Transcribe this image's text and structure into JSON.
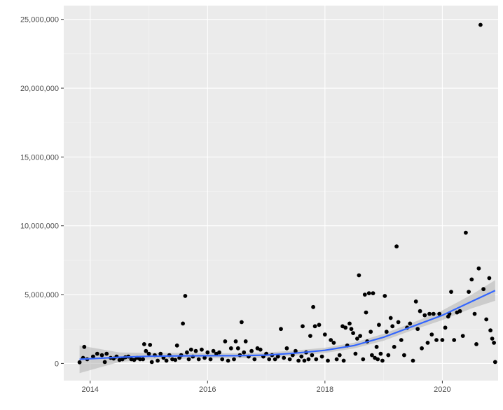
{
  "chart_data": {
    "type": "scatter",
    "xlim": [
      2013.55,
      2020.95
    ],
    "ylim": [
      -1250000,
      26000000
    ],
    "grid": true,
    "x_ticks": [
      2014,
      2016,
      2018,
      2020
    ],
    "x_tick_labels": [
      "2014",
      "2016",
      "2018",
      "2020"
    ],
    "y_ticks": [
      0,
      5000000,
      10000000,
      15000000,
      20000000,
      25000000
    ],
    "y_tick_labels": [
      "0",
      "5,000,000",
      "10,000,000",
      "15,000,000",
      "20,000,000",
      "25,000,000"
    ],
    "points": [
      [
        2013.82,
        80000
      ],
      [
        2013.88,
        400000
      ],
      [
        2013.9,
        1200000
      ],
      [
        2013.95,
        300000
      ],
      [
        2014.05,
        500000
      ],
      [
        2014.12,
        700000
      ],
      [
        2014.2,
        600000
      ],
      [
        2014.25,
        100000
      ],
      [
        2014.28,
        700000
      ],
      [
        2014.35,
        400000
      ],
      [
        2014.4,
        350000
      ],
      [
        2014.45,
        500000
      ],
      [
        2014.5,
        250000
      ],
      [
        2014.55,
        300000
      ],
      [
        2014.6,
        450000
      ],
      [
        2014.65,
        500000
      ],
      [
        2014.7,
        300000
      ],
      [
        2014.75,
        250000
      ],
      [
        2014.8,
        400000
      ],
      [
        2014.85,
        300000
      ],
      [
        2014.9,
        300000
      ],
      [
        2014.92,
        1400000
      ],
      [
        2014.95,
        900000
      ],
      [
        2015.0,
        700000
      ],
      [
        2015.02,
        1350000
      ],
      [
        2015.05,
        100000
      ],
      [
        2015.1,
        600000
      ],
      [
        2015.15,
        200000
      ],
      [
        2015.2,
        700000
      ],
      [
        2015.25,
        400000
      ],
      [
        2015.3,
        200000
      ],
      [
        2015.35,
        600000
      ],
      [
        2015.4,
        300000
      ],
      [
        2015.45,
        250000
      ],
      [
        2015.48,
        1300000
      ],
      [
        2015.52,
        400000
      ],
      [
        2015.55,
        600000
      ],
      [
        2015.58,
        2900000
      ],
      [
        2015.62,
        4900000
      ],
      [
        2015.65,
        800000
      ],
      [
        2015.68,
        300000
      ],
      [
        2015.72,
        1000000
      ],
      [
        2015.75,
        500000
      ],
      [
        2015.8,
        900000
      ],
      [
        2015.85,
        300000
      ],
      [
        2015.9,
        1000000
      ],
      [
        2015.95,
        400000
      ],
      [
        2016.0,
        800000
      ],
      [
        2016.05,
        300000
      ],
      [
        2016.1,
        900000
      ],
      [
        2016.15,
        700000
      ],
      [
        2016.2,
        800000
      ],
      [
        2016.25,
        300000
      ],
      [
        2016.3,
        1600000
      ],
      [
        2016.35,
        200000
      ],
      [
        2016.4,
        1100000
      ],
      [
        2016.45,
        300000
      ],
      [
        2016.48,
        1600000
      ],
      [
        2016.52,
        1100000
      ],
      [
        2016.55,
        600000
      ],
      [
        2016.58,
        3000000
      ],
      [
        2016.62,
        800000
      ],
      [
        2016.65,
        1600000
      ],
      [
        2016.7,
        500000
      ],
      [
        2016.75,
        900000
      ],
      [
        2016.8,
        300000
      ],
      [
        2016.85,
        1100000
      ],
      [
        2016.9,
        1000000
      ],
      [
        2016.95,
        500000
      ],
      [
        2017.0,
        700000
      ],
      [
        2017.05,
        300000
      ],
      [
        2017.1,
        600000
      ],
      [
        2017.15,
        300000
      ],
      [
        2017.2,
        500000
      ],
      [
        2017.25,
        2500000
      ],
      [
        2017.3,
        400000
      ],
      [
        2017.35,
        1100000
      ],
      [
        2017.4,
        300000
      ],
      [
        2017.45,
        600000
      ],
      [
        2017.5,
        900000
      ],
      [
        2017.55,
        200000
      ],
      [
        2017.6,
        500000
      ],
      [
        2017.62,
        2700000
      ],
      [
        2017.65,
        200000
      ],
      [
        2017.68,
        800000
      ],
      [
        2017.72,
        300000
      ],
      [
        2017.75,
        2000000
      ],
      [
        2017.78,
        600000
      ],
      [
        2017.8,
        4100000
      ],
      [
        2017.83,
        2700000
      ],
      [
        2017.85,
        300000
      ],
      [
        2017.9,
        2800000
      ],
      [
        2017.95,
        500000
      ],
      [
        2018.0,
        2100000
      ],
      [
        2018.05,
        200000
      ],
      [
        2018.1,
        1700000
      ],
      [
        2018.15,
        1500000
      ],
      [
        2018.2,
        300000
      ],
      [
        2018.25,
        600000
      ],
      [
        2018.3,
        2700000
      ],
      [
        2018.32,
        200000
      ],
      [
        2018.35,
        2600000
      ],
      [
        2018.38,
        1300000
      ],
      [
        2018.42,
        2900000
      ],
      [
        2018.45,
        2500000
      ],
      [
        2018.48,
        2200000
      ],
      [
        2018.52,
        700000
      ],
      [
        2018.55,
        1800000
      ],
      [
        2018.58,
        6400000
      ],
      [
        2018.6,
        2000000
      ],
      [
        2018.65,
        300000
      ],
      [
        2018.68,
        5000000
      ],
      [
        2018.7,
        3700000
      ],
      [
        2018.72,
        1600000
      ],
      [
        2018.75,
        5100000
      ],
      [
        2018.78,
        2300000
      ],
      [
        2018.8,
        600000
      ],
      [
        2018.82,
        5100000
      ],
      [
        2018.85,
        400000
      ],
      [
        2018.88,
        1200000
      ],
      [
        2018.9,
        300000
      ],
      [
        2018.92,
        2800000
      ],
      [
        2018.95,
        700000
      ],
      [
        2018.98,
        200000
      ],
      [
        2019.02,
        4900000
      ],
      [
        2019.05,
        2300000
      ],
      [
        2019.08,
        600000
      ],
      [
        2019.12,
        3300000
      ],
      [
        2019.15,
        2700000
      ],
      [
        2019.18,
        1200000
      ],
      [
        2019.22,
        8500000
      ],
      [
        2019.25,
        3000000
      ],
      [
        2019.3,
        1700000
      ],
      [
        2019.35,
        600000
      ],
      [
        2019.4,
        2600000
      ],
      [
        2019.45,
        2900000
      ],
      [
        2019.5,
        200000
      ],
      [
        2019.55,
        4500000
      ],
      [
        2019.58,
        2500000
      ],
      [
        2019.62,
        3800000
      ],
      [
        2019.65,
        1100000
      ],
      [
        2019.7,
        3500000
      ],
      [
        2019.75,
        1500000
      ],
      [
        2019.78,
        3600000
      ],
      [
        2019.82,
        2100000
      ],
      [
        2019.85,
        3600000
      ],
      [
        2019.9,
        1700000
      ],
      [
        2019.95,
        3600000
      ],
      [
        2020.0,
        1700000
      ],
      [
        2020.05,
        2600000
      ],
      [
        2020.1,
        3400000
      ],
      [
        2020.12,
        3600000
      ],
      [
        2020.15,
        5200000
      ],
      [
        2020.2,
        1700000
      ],
      [
        2020.25,
        3700000
      ],
      [
        2020.3,
        3800000
      ],
      [
        2020.35,
        2000000
      ],
      [
        2020.4,
        9500000
      ],
      [
        2020.45,
        5200000
      ],
      [
        2020.5,
        6100000
      ],
      [
        2020.55,
        3600000
      ],
      [
        2020.58,
        1400000
      ],
      [
        2020.62,
        6900000
      ],
      [
        2020.65,
        24600000
      ],
      [
        2020.7,
        5400000
      ],
      [
        2020.75,
        3200000
      ],
      [
        2020.8,
        6200000
      ],
      [
        2020.82,
        2400000
      ],
      [
        2020.85,
        1800000
      ],
      [
        2020.88,
        1500000
      ],
      [
        2020.9,
        100000
      ]
    ],
    "smooth": {
      "x": [
        2013.82,
        2014.5,
        2015.0,
        2015.5,
        2016.0,
        2016.5,
        2017.0,
        2017.5,
        2018.0,
        2018.5,
        2019.0,
        2019.5,
        2020.0,
        2020.5,
        2020.9
      ],
      "y": [
        300000,
        450000,
        520000,
        550000,
        560000,
        560000,
        600000,
        750000,
        950000,
        1300000,
        1900000,
        2700000,
        3500000,
        4500000,
        5300000
      ],
      "lower": [
        -700000,
        100000,
        280000,
        330000,
        370000,
        370000,
        410000,
        560000,
        760000,
        1090000,
        1650000,
        2430000,
        3150000,
        4000000,
        4550000
      ],
      "upper": [
        1300000,
        800000,
        760000,
        770000,
        750000,
        750000,
        790000,
        940000,
        1140000,
        1510000,
        2150000,
        2970000,
        3850000,
        5000000,
        6050000
      ]
    },
    "colors": {
      "panel": "#ebebeb",
      "grid_major": "#ffffff",
      "grid_minor": "#f5f5f5",
      "point": "#000000",
      "smooth_line": "#3366ff",
      "ribbon": "#b3b3b3",
      "axis_text": "#4d4d4d",
      "tick": "#333333"
    }
  }
}
